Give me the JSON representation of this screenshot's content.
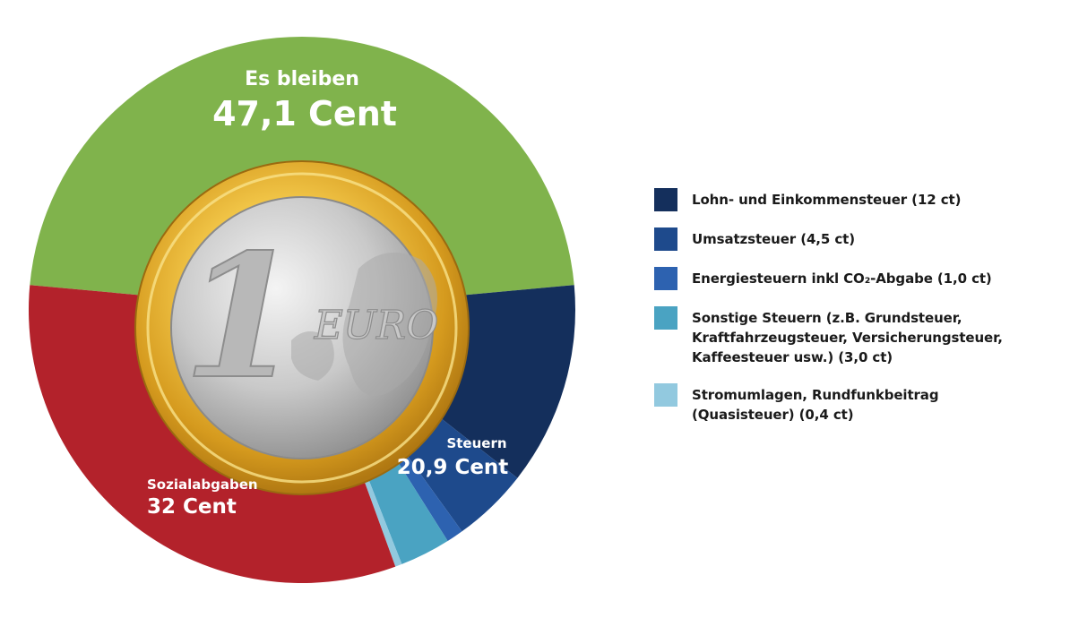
{
  "chart_data": {
    "type": "pie",
    "slices": [
      {
        "key": "bleiben",
        "value": 47.1,
        "color": "#80b34c"
      },
      {
        "key": "lohn",
        "value": 12.0,
        "color": "#142f5c"
      },
      {
        "key": "umsatz",
        "value": 4.5,
        "color": "#1e4a8c"
      },
      {
        "key": "energie",
        "value": 1.0,
        "color": "#2d62b0"
      },
      {
        "key": "sonstige",
        "value": 3.0,
        "color": "#4aa3c2"
      },
      {
        "key": "strom",
        "value": 0.4,
        "color": "#92c9df"
      },
      {
        "key": "sozial",
        "value": 32.0,
        "color": "#b3222b"
      }
    ],
    "labels": {
      "bleiben_title": "Es bleiben",
      "bleiben_value": "47,1 Cent",
      "steuern_title": "Steuern",
      "steuern_value": "20,9 Cent",
      "sozial_title": "Sozialabgaben",
      "sozial_value": "32 Cent"
    },
    "coin": {
      "numeral": "1",
      "currency": "EURO"
    },
    "legend": [
      {
        "text": "Lohn- und Einkommensteuer (12 ct)",
        "color": "#142f5c"
      },
      {
        "text": "Umsatzsteuer (4,5 ct)",
        "color": "#1e4a8c"
      },
      {
        "text": "Energiesteuern inkl CO₂-Abgabe (1,0 ct)",
        "color": "#2d62b0"
      },
      {
        "text": "Sonstige Steuern (z.B. Grundsteuer,\nKraftfahrzeugsteuer, Versicherungsteuer,\nKaffeesteuer usw.) (3,0 ct)",
        "color": "#4aa3c2"
      },
      {
        "text": "Stromumlagen, Rundfunkbeitrag\n(Quasisteuer) (0,4 ct)",
        "color": "#92c9df"
      }
    ]
  }
}
